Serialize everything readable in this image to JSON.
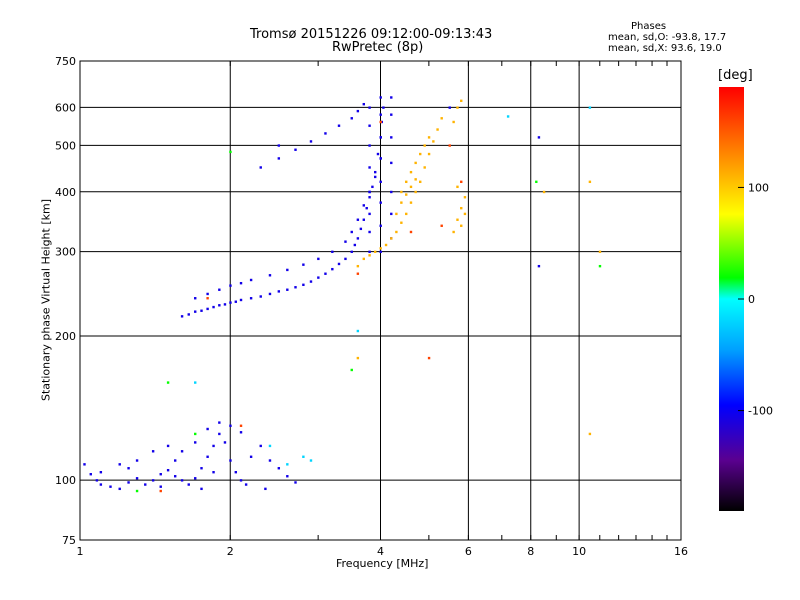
{
  "header": {
    "title_line1": "Tromsø 20151226 09:12:00-09:13:43",
    "title_line2": "RwPretec (8p)",
    "phases_title": "Phases",
    "phases_o": "mean, sd,O: -93.8, 17.7",
    "phases_x": "mean, sd,X:  93.6, 19.0"
  },
  "colorbar": {
    "unit": "[deg]",
    "ticks": [
      "100",
      "0",
      "-100"
    ],
    "range": [
      -190,
      190
    ]
  },
  "chart_data": {
    "type": "scatter",
    "xlabel": "Frequency [MHz]",
    "ylabel": "Stationary phase Virtual Height [km]",
    "xscale": "log2",
    "yscale": "log",
    "xlim": [
      1,
      16
    ],
    "ylim": [
      75,
      750
    ],
    "xticks": [
      "1",
      "2",
      "4",
      "6",
      "8",
      "10",
      "16"
    ],
    "xtick_values": [
      1,
      2,
      4,
      6,
      8,
      10,
      16
    ],
    "yticks": [
      "750",
      "600",
      "500",
      "400",
      "300",
      "200",
      "100",
      "75"
    ],
    "ytick_values": [
      750,
      600,
      500,
      400,
      300,
      200,
      100,
      75
    ],
    "grid": true,
    "series": [
      {
        "color_phase": -105,
        "points": [
          [
            1.6,
            220
          ],
          [
            1.65,
            222
          ],
          [
            1.7,
            225
          ],
          [
            1.75,
            226
          ],
          [
            1.8,
            228
          ],
          [
            1.85,
            230
          ],
          [
            1.9,
            232
          ],
          [
            1.95,
            233
          ],
          [
            2.0,
            235
          ],
          [
            2.05,
            236
          ],
          [
            2.1,
            238
          ],
          [
            2.2,
            240
          ],
          [
            2.3,
            242
          ],
          [
            2.4,
            245
          ],
          [
            2.5,
            248
          ],
          [
            2.6,
            250
          ],
          [
            2.7,
            253
          ],
          [
            2.8,
            256
          ],
          [
            2.9,
            260
          ],
          [
            3.0,
            265
          ],
          [
            3.1,
            270
          ],
          [
            3.2,
            276
          ],
          [
            3.3,
            283
          ],
          [
            3.4,
            290
          ],
          [
            3.5,
            300
          ],
          [
            3.55,
            310
          ],
          [
            3.6,
            320
          ],
          [
            3.65,
            335
          ],
          [
            3.7,
            350
          ],
          [
            3.75,
            370
          ],
          [
            3.8,
            390
          ],
          [
            3.85,
            410
          ],
          [
            3.9,
            440
          ],
          [
            3.95,
            480
          ],
          [
            4.0,
            520
          ],
          [
            4.02,
            560
          ],
          [
            4.05,
            600
          ],
          [
            1.7,
            240
          ],
          [
            1.8,
            245
          ],
          [
            1.9,
            250
          ],
          [
            2.0,
            255
          ],
          [
            2.1,
            258
          ],
          [
            2.2,
            262
          ],
          [
            2.4,
            268
          ],
          [
            2.6,
            275
          ],
          [
            2.8,
            282
          ],
          [
            3.0,
            290
          ],
          [
            3.2,
            300
          ],
          [
            3.4,
            315
          ],
          [
            3.5,
            330
          ],
          [
            3.6,
            350
          ],
          [
            3.7,
            375
          ],
          [
            3.8,
            400
          ],
          [
            3.9,
            430
          ],
          [
            4.0,
            470
          ],
          [
            2.3,
            450
          ],
          [
            2.5,
            470
          ],
          [
            2.7,
            490
          ],
          [
            2.9,
            510
          ],
          [
            3.1,
            530
          ],
          [
            3.3,
            550
          ],
          [
            3.5,
            570
          ],
          [
            3.6,
            590
          ],
          [
            3.7,
            610
          ],
          [
            3.8,
            300
          ],
          [
            3.8,
            330
          ],
          [
            3.8,
            360
          ],
          [
            3.8,
            400
          ],
          [
            3.8,
            450
          ],
          [
            3.8,
            500
          ],
          [
            3.8,
            550
          ],
          [
            3.8,
            600
          ],
          [
            4.0,
            300
          ],
          [
            4.0,
            340
          ],
          [
            4.0,
            380
          ],
          [
            4.0,
            420
          ],
          [
            4.0,
            470
          ],
          [
            4.0,
            520
          ],
          [
            4.0,
            580
          ],
          [
            4.0,
            630
          ],
          [
            4.2,
            320
          ],
          [
            4.2,
            360
          ],
          [
            4.2,
            400
          ],
          [
            4.2,
            460
          ],
          [
            4.2,
            520
          ],
          [
            4.2,
            580
          ],
          [
            4.2,
            630
          ],
          [
            1.02,
            108
          ],
          [
            1.05,
            103
          ],
          [
            1.08,
            100
          ],
          [
            1.1,
            98
          ],
          [
            1.15,
            97
          ],
          [
            1.2,
            96
          ],
          [
            1.25,
            99
          ],
          [
            1.3,
            101
          ],
          [
            1.35,
            98
          ],
          [
            1.4,
            100
          ],
          [
            1.45,
            103
          ],
          [
            1.5,
            105
          ],
          [
            1.55,
            102
          ],
          [
            1.6,
            100
          ],
          [
            1.65,
            98
          ],
          [
            1.7,
            101
          ],
          [
            1.75,
            106
          ],
          [
            1.8,
            112
          ],
          [
            1.85,
            118
          ],
          [
            1.9,
            125
          ],
          [
            1.95,
            120
          ],
          [
            2.0,
            110
          ],
          [
            2.05,
            104
          ],
          [
            2.1,
            100
          ],
          [
            2.2,
            112
          ],
          [
            2.3,
            118
          ],
          [
            2.4,
            110
          ],
          [
            2.5,
            106
          ],
          [
            2.6,
            102
          ],
          [
            2.7,
            99
          ],
          [
            1.2,
            108
          ],
          [
            1.3,
            110
          ],
          [
            1.4,
            115
          ],
          [
            1.5,
            118
          ],
          [
            1.6,
            115
          ],
          [
            1.7,
            120
          ],
          [
            1.8,
            128
          ],
          [
            1.9,
            132
          ],
          [
            2.0,
            130
          ],
          [
            2.1,
            126
          ],
          [
            1.1,
            104
          ],
          [
            1.25,
            106
          ],
          [
            1.45,
            97
          ],
          [
            1.55,
            110
          ],
          [
            1.75,
            96
          ],
          [
            1.85,
            104
          ],
          [
            2.15,
            98
          ],
          [
            2.35,
            96
          ],
          [
            8.3,
            280
          ],
          [
            8.3,
            520
          ],
          [
            5.5,
            600
          ],
          [
            2.5,
            500
          ]
        ]
      },
      {
        "color_phase": 110,
        "points": [
          [
            3.6,
            280
          ],
          [
            3.7,
            290
          ],
          [
            3.8,
            295
          ],
          [
            3.9,
            300
          ],
          [
            4.0,
            305
          ],
          [
            4.1,
            310
          ],
          [
            4.2,
            320
          ],
          [
            4.3,
            330
          ],
          [
            4.4,
            345
          ],
          [
            4.5,
            360
          ],
          [
            4.6,
            380
          ],
          [
            4.7,
            400
          ],
          [
            4.8,
            420
          ],
          [
            4.9,
            450
          ],
          [
            5.0,
            480
          ],
          [
            5.1,
            510
          ],
          [
            5.2,
            540
          ],
          [
            5.3,
            570
          ],
          [
            4.4,
            400
          ],
          [
            4.5,
            420
          ],
          [
            4.6,
            440
          ],
          [
            4.7,
            460
          ],
          [
            4.8,
            480
          ],
          [
            4.9,
            500
          ],
          [
            5.0,
            520
          ],
          [
            4.3,
            360
          ],
          [
            4.4,
            380
          ],
          [
            4.5,
            395
          ],
          [
            4.6,
            410
          ],
          [
            4.7,
            425
          ],
          [
            5.6,
            330
          ],
          [
            5.7,
            350
          ],
          [
            5.8,
            370
          ],
          [
            5.9,
            390
          ],
          [
            5.7,
            410
          ],
          [
            5.8,
            340
          ],
          [
            5.9,
            360
          ],
          [
            5.6,
            560
          ],
          [
            5.7,
            600
          ],
          [
            5.8,
            620
          ],
          [
            8.5,
            400
          ],
          [
            10.5,
            420
          ],
          [
            11,
            300
          ],
          [
            10.5,
            125
          ],
          [
            3.6,
            180
          ]
        ]
      },
      {
        "color_phase": 160,
        "points": [
          [
            4.6,
            330
          ],
          [
            5.3,
            340
          ],
          [
            5.5,
            500
          ],
          [
            5.8,
            420
          ],
          [
            4.0,
            560
          ],
          [
            3.6,
            270
          ],
          [
            1.8,
            240
          ],
          [
            5.0,
            180
          ],
          [
            2.1,
            130
          ],
          [
            1.45,
            95
          ]
        ]
      },
      {
        "color_phase": -20,
        "points": [
          [
            2.4,
            118
          ],
          [
            2.6,
            108
          ],
          [
            2.8,
            112
          ],
          [
            2.9,
            110
          ],
          [
            1.7,
            160
          ],
          [
            7.2,
            575
          ],
          [
            10.5,
            600
          ],
          [
            3.6,
            205
          ]
        ]
      },
      {
        "color_phase": 20,
        "points": [
          [
            1.3,
            95
          ],
          [
            1.7,
            125
          ],
          [
            3.5,
            170
          ],
          [
            8.2,
            420
          ],
          [
            11,
            280
          ],
          [
            1.5,
            160
          ],
          [
            2.0,
            485
          ]
        ]
      }
    ]
  }
}
